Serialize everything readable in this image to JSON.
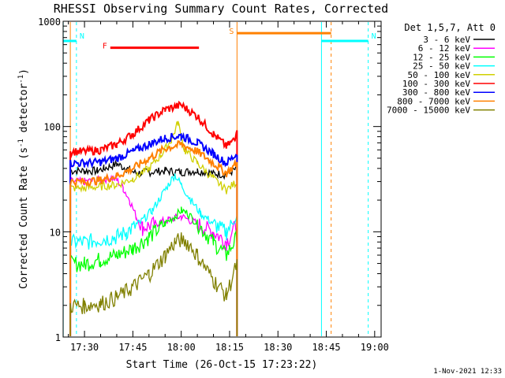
{
  "chart_data": {
    "type": "line",
    "title": "RHESSI Observing Summary Count Rates, Corrected",
    "xlabel": "Start Time (26-Oct-15 17:23:22)",
    "ylabel_main": "Corrected Count Rate (s",
    "ylabel_sup1": "-1",
    "ylabel_mid": " detector",
    "ylabel_sup2": "-1",
    "ylabel_end": ")",
    "y_scale": "log",
    "ylim": [
      1,
      1000
    ],
    "xlim_minutes": [
      "17:23:22",
      "19:02:00"
    ],
    "xticks": [
      "17:30",
      "17:45",
      "18:00",
      "18:15",
      "18:30",
      "18:45",
      "19:00"
    ],
    "xtick_minutes": [
      1050,
      1065,
      1080,
      1095,
      1110,
      1125,
      1140
    ],
    "yticks": [
      "1",
      "10",
      "100",
      "1000"
    ],
    "ytick_values": [
      1,
      10,
      100,
      1000
    ],
    "legend_placement": "top-right",
    "legend_title": "Det 1,5,7, Att 0",
    "footer_date": "1-Nov-2021 12:33",
    "series": [
      {
        "name": "3 - 6 keV",
        "color": "#000000",
        "x": [
          1045.6,
          1050,
          1054,
          1056,
          1060,
          1063,
          1066,
          1070,
          1075,
          1080,
          1085,
          1090,
          1094,
          1097.3
        ],
        "y": [
          0,
          38,
          38,
          40,
          44,
          40,
          36,
          37,
          38,
          37,
          38,
          36,
          35,
          40
        ]
      },
      {
        "name": "6 - 12 keV",
        "color": "#ff00ff",
        "x": [
          1045.6,
          1050,
          1055,
          1058,
          1060,
          1062,
          1064,
          1066,
          1068,
          1072,
          1076,
          1080,
          1085,
          1090,
          1094,
          1097.3
        ],
        "y": [
          0,
          30,
          31,
          33,
          31,
          26,
          20,
          14,
          11,
          12,
          13,
          14,
          12,
          10,
          8,
          12
        ]
      },
      {
        "name": "12 - 25 keV",
        "color": "#00ff00",
        "x": [
          1045.6,
          1050,
          1055,
          1060,
          1065,
          1070,
          1075,
          1078,
          1080,
          1082,
          1085,
          1090,
          1094,
          1097.3
        ],
        "y": [
          0,
          5,
          5.5,
          6,
          7,
          9,
          12,
          14,
          16,
          15,
          12,
          8,
          6,
          9
        ]
      },
      {
        "name": "25 - 50 keV",
        "color": "#00ffff",
        "x": [
          1045.6,
          1050,
          1055,
          1060,
          1063,
          1067,
          1071,
          1075,
          1078,
          1080,
          1083,
          1086,
          1090,
          1094,
          1097.3
        ],
        "y": [
          0,
          8,
          8.5,
          9,
          10,
          12,
          16,
          25,
          35,
          28,
          20,
          15,
          12,
          10,
          14
        ]
      },
      {
        "name": "50 - 100 keV",
        "color": "#d0d000",
        "x": [
          1045.6,
          1050,
          1055,
          1060,
          1065,
          1070,
          1074,
          1077,
          1079,
          1081,
          1085,
          1090,
          1094,
          1097.3
        ],
        "y": [
          0,
          26,
          27,
          28,
          32,
          40,
          55,
          75,
          110,
          60,
          45,
          32,
          25,
          30
        ]
      },
      {
        "name": "100 - 300 keV",
        "color": "#ff0000",
        "x": [
          1045.6,
          1050,
          1055,
          1060,
          1065,
          1070,
          1075,
          1080,
          1085,
          1090,
          1094,
          1096.5,
          1097.3
        ],
        "y": [
          0,
          58,
          60,
          68,
          85,
          115,
          145,
          160,
          125,
          85,
          65,
          75,
          100
        ]
      },
      {
        "name": "300 - 800 keV",
        "color": "#0000ff",
        "x": [
          1045.6,
          1050,
          1055,
          1060,
          1065,
          1070,
          1075,
          1080,
          1085,
          1090,
          1094,
          1097.3
        ],
        "y": [
          0,
          45,
          46,
          50,
          58,
          68,
          78,
          82,
          70,
          55,
          45,
          55
        ]
      },
      {
        "name": "800 - 7000 keV",
        "color": "#ff8000",
        "x": [
          1045.6,
          1050,
          1055,
          1060,
          1065,
          1070,
          1075,
          1080,
          1085,
          1090,
          1094,
          1097.3
        ],
        "y": [
          0,
          30,
          31,
          34,
          40,
          50,
          62,
          68,
          58,
          45,
          36,
          45
        ]
      },
      {
        "name": "7000 - 15000 keV",
        "color": "#808000",
        "x": [
          1045.6,
          1050,
          1055,
          1060,
          1065,
          1070,
          1075,
          1078,
          1080,
          1082,
          1085,
          1090,
          1094,
          1097.3
        ],
        "y": [
          0,
          2,
          2.1,
          2.4,
          3,
          4,
          6,
          8,
          8.5,
          8,
          6,
          3.5,
          2.5,
          5
        ]
      }
    ],
    "flags": [
      {
        "label": "N",
        "color": "#00ffff",
        "x_start": 1043.4,
        "x_end": 1047.5,
        "x_dash": 1047.5,
        "y": 650
      },
      {
        "label": "N",
        "color": "#00ffff",
        "x_start": 1123.5,
        "x_end": 1138,
        "x_dash": 1138,
        "y": 650
      },
      {
        "label": "F",
        "color": "#ff0000",
        "x_start": 1058,
        "x_end": 1085.5,
        "y": 560
      },
      {
        "label": "S",
        "color": "#ff8000",
        "x_start": 1097.3,
        "x_end": 1126.5,
        "x_dash": 1126.5,
        "y": 770
      }
    ]
  }
}
